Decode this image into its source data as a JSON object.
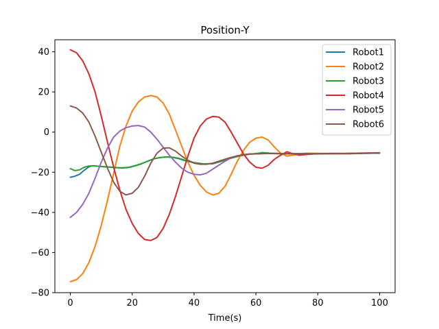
{
  "chart_data": {
    "type": "line",
    "title": "Position-Y",
    "xlabel": "Time(s)",
    "ylabel": "",
    "xlim": [
      -5,
      105
    ],
    "ylim": [
      -80,
      46
    ],
    "xticks": [
      0,
      20,
      40,
      60,
      80,
      100
    ],
    "yticks": [
      -80,
      -60,
      -40,
      -20,
      0,
      20,
      40
    ],
    "xtick_labels": [
      "0",
      "20",
      "40",
      "60",
      "80",
      "100"
    ],
    "ytick_labels": [
      "−80",
      "−60",
      "−40",
      "−20",
      "0",
      "20",
      "40"
    ],
    "legend_position": "top-right",
    "grid": false,
    "series": [
      {
        "name": "Robot1",
        "color": "#1f77b4",
        "points": [
          [
            0,
            -22.5
          ],
          [
            1.5,
            -22
          ],
          [
            3,
            -21
          ],
          [
            4.5,
            -19
          ],
          [
            6,
            -17.3
          ],
          [
            7,
            -16.8
          ],
          [
            9,
            -17
          ],
          [
            11,
            -17.3
          ],
          [
            13,
            -17.5
          ],
          [
            15,
            -17.8
          ],
          [
            17,
            -17.9
          ],
          [
            19,
            -17.6
          ],
          [
            21,
            -16.8
          ],
          [
            23,
            -15.8
          ],
          [
            25,
            -14.5
          ],
          [
            27,
            -13.3
          ],
          [
            29,
            -12.7
          ],
          [
            31,
            -12.4
          ],
          [
            33,
            -12.6
          ],
          [
            35,
            -13.2
          ],
          [
            37,
            -14.2
          ],
          [
            40,
            -15.3
          ],
          [
            43,
            -15.9
          ],
          [
            46,
            -15.8
          ],
          [
            49,
            -14.5
          ],
          [
            52,
            -13
          ],
          [
            55,
            -11.8
          ],
          [
            58,
            -11
          ],
          [
            61,
            -10.8
          ],
          [
            64,
            -10.6
          ],
          [
            67,
            -10.7
          ],
          [
            70,
            -10.8
          ],
          [
            75,
            -10.9
          ],
          [
            80,
            -10.8
          ],
          [
            85,
            -10.8
          ],
          [
            90,
            -10.7
          ],
          [
            95,
            -10.6
          ],
          [
            100,
            -10.5
          ]
        ]
      },
      {
        "name": "Robot2",
        "color": "#ff7f0e",
        "points": [
          [
            0,
            -74.5
          ],
          [
            2,
            -73.5
          ],
          [
            4,
            -70.5
          ],
          [
            6,
            -65
          ],
          [
            8,
            -57
          ],
          [
            10,
            -46.5
          ],
          [
            12,
            -34
          ],
          [
            14,
            -20.5
          ],
          [
            16,
            -7
          ],
          [
            18,
            3
          ],
          [
            20,
            10.5
          ],
          [
            22,
            15
          ],
          [
            24,
            17.5
          ],
          [
            26,
            18.2
          ],
          [
            28,
            17.5
          ],
          [
            30,
            14.5
          ],
          [
            32,
            9
          ],
          [
            34,
            1
          ],
          [
            36,
            -7
          ],
          [
            38,
            -15
          ],
          [
            40,
            -21.5
          ],
          [
            42,
            -26.5
          ],
          [
            44,
            -29.8
          ],
          [
            46,
            -31.3
          ],
          [
            48,
            -30.5
          ],
          [
            50,
            -27
          ],
          [
            52,
            -21
          ],
          [
            54,
            -14.5
          ],
          [
            56,
            -9
          ],
          [
            58,
            -5
          ],
          [
            60,
            -3
          ],
          [
            62,
            -2.5
          ],
          [
            64,
            -4
          ],
          [
            66,
            -7.5
          ],
          [
            68,
            -10.5
          ],
          [
            70,
            -12
          ],
          [
            72,
            -11.5
          ],
          [
            74,
            -11
          ],
          [
            76,
            -10.5
          ],
          [
            80,
            -10.6
          ],
          [
            85,
            -10.7
          ],
          [
            90,
            -10.6
          ],
          [
            95,
            -10.5
          ],
          [
            100,
            -10.4
          ]
        ]
      },
      {
        "name": "Robot3",
        "color": "#2ca02c",
        "points": [
          [
            0,
            -18.2
          ],
          [
            1.5,
            -19.2
          ],
          [
            3,
            -18.8
          ],
          [
            4.5,
            -17.5
          ],
          [
            6,
            -16.9
          ],
          [
            7.5,
            -16.8
          ],
          [
            9,
            -17
          ],
          [
            11,
            -17.2
          ],
          [
            13,
            -17.4
          ],
          [
            15,
            -17.7
          ],
          [
            17,
            -17.8
          ],
          [
            19,
            -17.5
          ],
          [
            21,
            -16.7
          ],
          [
            23,
            -15.7
          ],
          [
            25,
            -14.5
          ],
          [
            27,
            -13.3
          ],
          [
            29,
            -12.7
          ],
          [
            31,
            -12.4
          ],
          [
            33,
            -12.5
          ],
          [
            35,
            -13
          ],
          [
            37,
            -14
          ],
          [
            40,
            -15.2
          ],
          [
            43,
            -15.8
          ],
          [
            46,
            -15.7
          ],
          [
            49,
            -14.4
          ],
          [
            52,
            -12.9
          ],
          [
            55,
            -11.7
          ],
          [
            58,
            -11
          ],
          [
            61,
            -10.5
          ],
          [
            62,
            -10.2
          ],
          [
            64,
            -10.4
          ],
          [
            66,
            -10.7
          ],
          [
            70,
            -10.9
          ],
          [
            75,
            -10.8
          ],
          [
            80,
            -10.9
          ],
          [
            85,
            -10.7
          ],
          [
            90,
            -10.8
          ],
          [
            95,
            -10.6
          ],
          [
            100,
            -10.4
          ]
        ]
      },
      {
        "name": "Robot4",
        "color": "#d62728",
        "points": [
          [
            0,
            41
          ],
          [
            2,
            39.5
          ],
          [
            4,
            35.5
          ],
          [
            6,
            29
          ],
          [
            8,
            20
          ],
          [
            10,
            8
          ],
          [
            12,
            -5
          ],
          [
            14,
            -17.5
          ],
          [
            16,
            -29
          ],
          [
            18,
            -38.5
          ],
          [
            20,
            -45.5
          ],
          [
            22,
            -50.5
          ],
          [
            24,
            -53.5
          ],
          [
            26,
            -54
          ],
          [
            28,
            -52.5
          ],
          [
            30,
            -48
          ],
          [
            32,
            -41
          ],
          [
            34,
            -32
          ],
          [
            36,
            -22
          ],
          [
            38,
            -12
          ],
          [
            40,
            -3
          ],
          [
            42,
            3
          ],
          [
            44,
            6.5
          ],
          [
            46,
            7.8
          ],
          [
            48,
            7.5
          ],
          [
            50,
            5
          ],
          [
            52,
            0
          ],
          [
            54,
            -5.5
          ],
          [
            56,
            -11
          ],
          [
            58,
            -15
          ],
          [
            60,
            -17.5
          ],
          [
            62,
            -18
          ],
          [
            64,
            -16.5
          ],
          [
            66,
            -13.5
          ],
          [
            68,
            -11.5
          ],
          [
            70,
            -9.8
          ],
          [
            72,
            -10.8
          ],
          [
            74,
            -11.5
          ],
          [
            76,
            -11.2
          ],
          [
            80,
            -10.8
          ],
          [
            85,
            -10.7
          ],
          [
            90,
            -10.6
          ],
          [
            95,
            -10.4
          ],
          [
            100,
            -10.3
          ]
        ]
      },
      {
        "name": "Robot5",
        "color": "#9467bd",
        "points": [
          [
            0,
            -42.5
          ],
          [
            2,
            -40
          ],
          [
            4,
            -36
          ],
          [
            6,
            -30.5
          ],
          [
            8,
            -23
          ],
          [
            10,
            -15
          ],
          [
            12,
            -8
          ],
          [
            14,
            -2.5
          ],
          [
            16,
            0.5
          ],
          [
            18,
            2.2
          ],
          [
            20,
            3
          ],
          [
            22,
            3.3
          ],
          [
            24,
            2.5
          ],
          [
            26,
            0
          ],
          [
            28,
            -3.5
          ],
          [
            30,
            -7.5
          ],
          [
            32,
            -11.5
          ],
          [
            34,
            -15
          ],
          [
            36,
            -18
          ],
          [
            38,
            -20
          ],
          [
            40,
            -21
          ],
          [
            42,
            -21.3
          ],
          [
            44,
            -20.5
          ],
          [
            46,
            -18.5
          ],
          [
            48,
            -16.5
          ],
          [
            50,
            -14.5
          ],
          [
            52,
            -12.8
          ],
          [
            54,
            -11.8
          ],
          [
            56,
            -11.3
          ],
          [
            58,
            -11
          ],
          [
            62,
            -10.7
          ],
          [
            66,
            -10.6
          ],
          [
            70,
            -10.8
          ],
          [
            75,
            -10.7
          ],
          [
            80,
            -10.8
          ],
          [
            85,
            -10.6
          ],
          [
            90,
            -10.7
          ],
          [
            95,
            -10.5
          ],
          [
            100,
            -10.4
          ]
        ]
      },
      {
        "name": "Robot6",
        "color": "#8c564b",
        "points": [
          [
            0,
            13
          ],
          [
            2,
            12
          ],
          [
            4,
            9.5
          ],
          [
            6,
            5
          ],
          [
            8,
            -2
          ],
          [
            10,
            -10
          ],
          [
            12,
            -18
          ],
          [
            14,
            -25
          ],
          [
            16,
            -29.5
          ],
          [
            18,
            -31.3
          ],
          [
            20,
            -30.5
          ],
          [
            22,
            -27.5
          ],
          [
            24,
            -22
          ],
          [
            26,
            -15.5
          ],
          [
            28,
            -10.5
          ],
          [
            30,
            -8
          ],
          [
            32,
            -7.8
          ],
          [
            34,
            -9.5
          ],
          [
            36,
            -12
          ],
          [
            38,
            -14
          ],
          [
            40,
            -15.5
          ],
          [
            42,
            -16
          ],
          [
            44,
            -16
          ],
          [
            46,
            -15.5
          ],
          [
            48,
            -14.5
          ],
          [
            50,
            -13.5
          ],
          [
            52,
            -12.6
          ],
          [
            54,
            -11.8
          ],
          [
            56,
            -11.2
          ],
          [
            58,
            -10.9
          ],
          [
            62,
            -10.7
          ],
          [
            66,
            -10.6
          ],
          [
            70,
            -10.8
          ],
          [
            75,
            -10.7
          ],
          [
            80,
            -10.7
          ],
          [
            85,
            -10.6
          ],
          [
            90,
            -10.7
          ],
          [
            95,
            -10.5
          ],
          [
            100,
            -10.4
          ]
        ]
      }
    ]
  }
}
